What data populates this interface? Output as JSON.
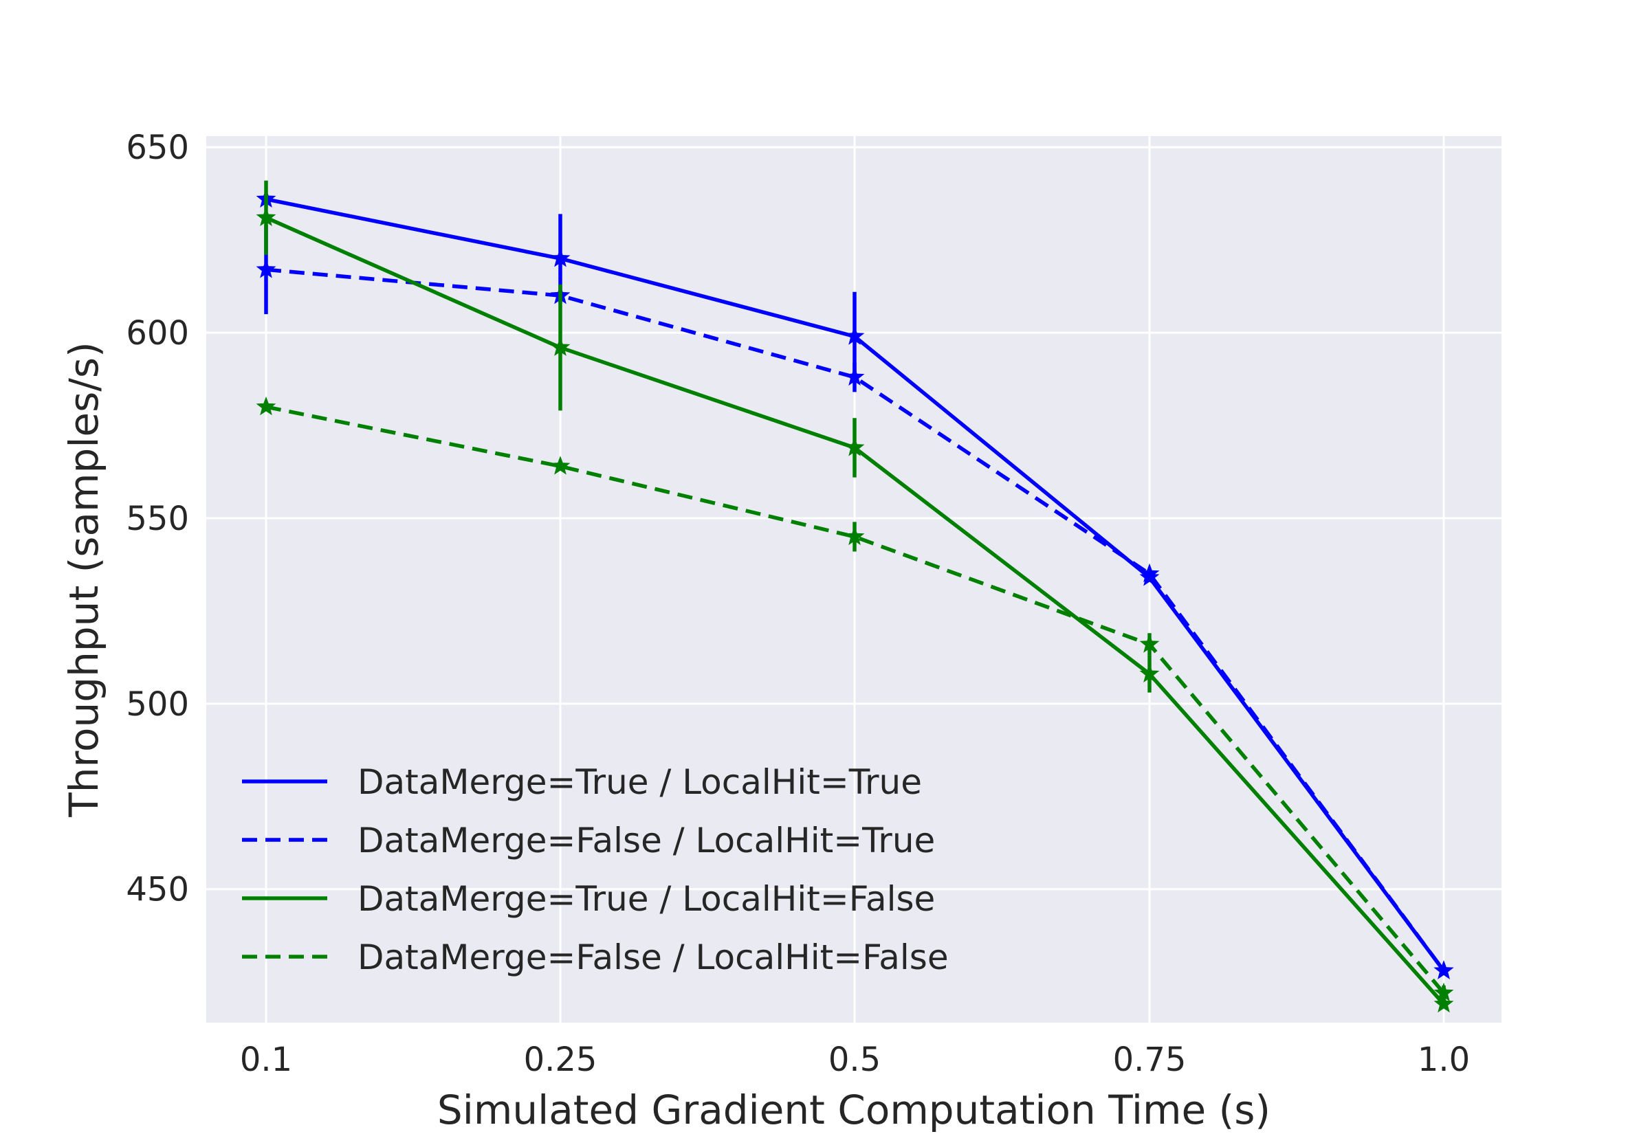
{
  "chart_data": {
    "type": "line",
    "title": "",
    "xlabel": "Simulated Gradient Computation Time (s)",
    "ylabel": "Throughput (samples/s)",
    "x": [
      "0.1",
      "0.25",
      "0.5",
      "0.75",
      "1.0"
    ],
    "ylim": [
      414,
      653
    ],
    "yticks": [
      450,
      500,
      550,
      600,
      650
    ],
    "grid": true,
    "legend_position": "lower-left",
    "series": [
      {
        "name": "DataMerge=True / LocalHit=True",
        "color": "#0000ff",
        "linestyle": "solid",
        "marker": "star",
        "values": [
          636,
          620,
          599,
          534,
          428
        ],
        "errors": [
          0,
          12,
          12,
          0,
          0
        ]
      },
      {
        "name": "DataMerge=False / LocalHit=True",
        "color": "#0000ff",
        "linestyle": "dashed",
        "marker": "star",
        "values": [
          617,
          610,
          588,
          535,
          428
        ],
        "errors": [
          12,
          0,
          4,
          0,
          0
        ]
      },
      {
        "name": "DataMerge=True / LocalHit=False",
        "color": "#008000",
        "linestyle": "solid",
        "marker": "star",
        "values": [
          631,
          596,
          569,
          508,
          419
        ],
        "errors": [
          10,
          17,
          8,
          5,
          0
        ]
      },
      {
        "name": "DataMerge=False / LocalHit=False",
        "color": "#008000",
        "linestyle": "dashed",
        "marker": "star",
        "values": [
          580,
          564,
          545,
          516,
          422
        ],
        "errors": [
          0,
          0,
          4,
          3,
          2
        ]
      }
    ]
  }
}
